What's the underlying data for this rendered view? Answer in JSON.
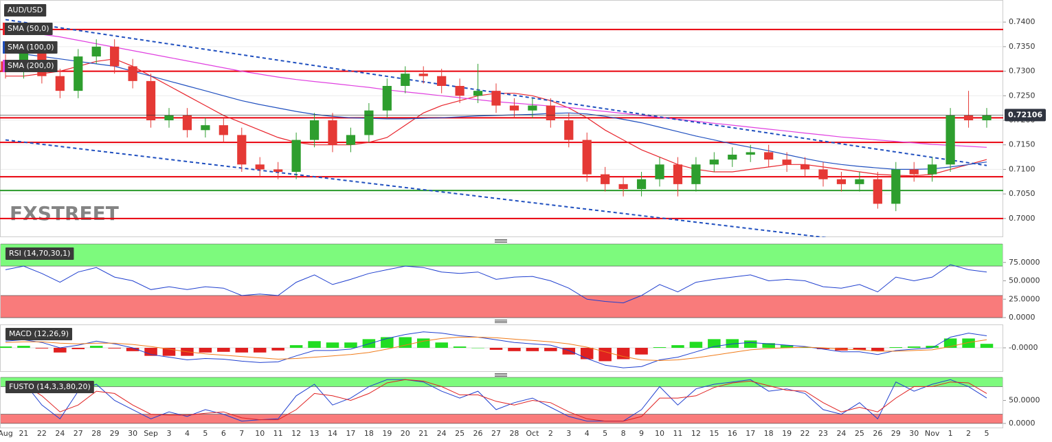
{
  "title": "AUD/USD",
  "watermark": "FXSTREET",
  "chart_data": [
    {
      "type": "candlestick",
      "categories": [
        "Aug",
        "21",
        "22",
        "24",
        "27",
        "28",
        "29",
        "30",
        "Sep",
        "3",
        "4",
        "5",
        "6",
        "7",
        "10",
        "11",
        "12",
        "13",
        "14",
        "17",
        "18",
        "19",
        "20",
        "21",
        "24",
        "25",
        "26",
        "27",
        "28",
        "Oct",
        "2",
        "3",
        "4",
        "5",
        "8",
        "9",
        "10",
        "11",
        "12",
        "15",
        "16",
        "17",
        "18",
        "19",
        "22",
        "23",
        "24",
        "25",
        "26",
        "29",
        "30",
        "Nov",
        "1",
        "2",
        "5"
      ],
      "open": [
        0.732,
        0.73,
        0.734,
        0.729,
        0.726,
        0.733,
        0.735,
        0.731,
        0.728,
        0.72,
        0.721,
        0.718,
        0.719,
        0.717,
        0.711,
        0.71,
        0.7095,
        0.716,
        0.72,
        0.715,
        0.717,
        0.722,
        0.727,
        0.7295,
        0.729,
        0.727,
        0.725,
        0.726,
        0.723,
        0.722,
        0.723,
        0.72,
        0.716,
        0.709,
        0.707,
        0.706,
        0.708,
        0.711,
        0.707,
        0.711,
        0.712,
        0.713,
        0.7135,
        0.712,
        0.711,
        0.71,
        0.708,
        0.707,
        0.708,
        0.703,
        0.71,
        0.709,
        0.711,
        0.721,
        0.72
      ],
      "high": [
        0.7335,
        0.7355,
        0.7355,
        0.7305,
        0.7345,
        0.7365,
        0.7365,
        0.7325,
        0.7295,
        0.7225,
        0.7225,
        0.7205,
        0.7205,
        0.7185,
        0.7125,
        0.7115,
        0.7175,
        0.7215,
        0.7215,
        0.7185,
        0.7235,
        0.7285,
        0.731,
        0.731,
        0.7305,
        0.7285,
        0.7315,
        0.7275,
        0.7245,
        0.7245,
        0.7245,
        0.7215,
        0.7175,
        0.7105,
        0.7085,
        0.7095,
        0.7125,
        0.7125,
        0.7125,
        0.7135,
        0.7145,
        0.715,
        0.715,
        0.7135,
        0.7125,
        0.7115,
        0.7095,
        0.7095,
        0.7095,
        0.7115,
        0.7115,
        0.7125,
        0.7225,
        0.726,
        0.7225
      ],
      "low": [
        0.7285,
        0.7285,
        0.7275,
        0.7245,
        0.7245,
        0.7315,
        0.7295,
        0.7265,
        0.7185,
        0.7185,
        0.7165,
        0.7165,
        0.7155,
        0.7095,
        0.7085,
        0.708,
        0.708,
        0.7145,
        0.7135,
        0.7135,
        0.7155,
        0.7205,
        0.7255,
        0.7275,
        0.7255,
        0.7235,
        0.7235,
        0.7215,
        0.7205,
        0.7205,
        0.7185,
        0.7145,
        0.7075,
        0.7055,
        0.7045,
        0.7045,
        0.7065,
        0.7045,
        0.7055,
        0.7095,
        0.7105,
        0.7115,
        0.7105,
        0.7095,
        0.7085,
        0.7065,
        0.7055,
        0.7055,
        0.702,
        0.7015,
        0.7075,
        0.7075,
        0.7095,
        0.7185,
        0.7185
      ],
      "close": [
        0.73,
        0.734,
        0.729,
        0.726,
        0.733,
        0.735,
        0.731,
        0.728,
        0.72,
        0.721,
        0.718,
        0.719,
        0.717,
        0.711,
        0.71,
        0.7095,
        0.716,
        0.72,
        0.715,
        0.717,
        0.722,
        0.727,
        0.7295,
        0.729,
        0.727,
        0.725,
        0.726,
        0.723,
        0.722,
        0.723,
        0.72,
        0.716,
        0.709,
        0.707,
        0.706,
        0.708,
        0.711,
        0.707,
        0.711,
        0.712,
        0.713,
        0.7135,
        0.712,
        0.711,
        0.71,
        0.708,
        0.707,
        0.708,
        0.703,
        0.71,
        0.709,
        0.711,
        0.721,
        0.72,
        0.721
      ],
      "up_color": "#2e9e2e",
      "down_color": "#e53935",
      "series": [
        {
          "name": "SMA (50,0)",
          "color": "#e8242c",
          "values": [
            0.729,
            0.729,
            0.7295,
            0.73,
            0.731,
            0.732,
            0.7325,
            0.731,
            0.729,
            0.727,
            0.725,
            0.723,
            0.721,
            0.7195,
            0.718,
            0.7165,
            0.7155,
            0.715,
            0.715,
            0.715,
            0.7155,
            0.7165,
            0.719,
            0.7215,
            0.723,
            0.724,
            0.725,
            0.7255,
            0.7255,
            0.725,
            0.724,
            0.7225,
            0.7205,
            0.718,
            0.716,
            0.714,
            0.7125,
            0.711,
            0.71,
            0.7095,
            0.7095,
            0.71,
            0.7105,
            0.711,
            0.711,
            0.7105,
            0.71,
            0.7095,
            0.709,
            0.7088,
            0.7087,
            0.709,
            0.71,
            0.711,
            0.712
          ]
        },
        {
          "name": "SMA (100,0)",
          "color": "#1f4fbf",
          "values": [
            0.734,
            0.7335,
            0.733,
            0.7325,
            0.732,
            0.7315,
            0.731,
            0.73,
            0.729,
            0.728,
            0.727,
            0.726,
            0.725,
            0.724,
            0.7232,
            0.7225,
            0.7218,
            0.7212,
            0.7208,
            0.7205,
            0.7204,
            0.7203,
            0.7203,
            0.7204,
            0.7205,
            0.7207,
            0.7209,
            0.721,
            0.7211,
            0.7212,
            0.7214,
            0.7215,
            0.7213,
            0.7208,
            0.7202,
            0.7195,
            0.7186,
            0.7177,
            0.7168,
            0.716,
            0.7152,
            0.7145,
            0.7138,
            0.713,
            0.7122,
            0.7115,
            0.711,
            0.7106,
            0.7103,
            0.71,
            0.71,
            0.7101,
            0.7105,
            0.711,
            0.7115
          ]
        },
        {
          "name": "SMA (200,0)",
          "color": "#e040e0",
          "values": [
            0.7385,
            0.738,
            0.7375,
            0.737,
            0.7363,
            0.7356,
            0.7349,
            0.7342,
            0.7335,
            0.7328,
            0.7321,
            0.7314,
            0.7307,
            0.73,
            0.7294,
            0.7288,
            0.7283,
            0.7279,
            0.7275,
            0.7271,
            0.7267,
            0.7262,
            0.7258,
            0.7254,
            0.725,
            0.7246,
            0.7242,
            0.7238,
            0.7235,
            0.7232,
            0.7229,
            0.7226,
            0.7222,
            0.7218,
            0.7214,
            0.721,
            0.7206,
            0.7202,
            0.7198,
            0.7194,
            0.719,
            0.7186,
            0.7182,
            0.7178,
            0.7174,
            0.717,
            0.7166,
            0.7163,
            0.716,
            0.7157,
            0.7154,
            0.7151,
            0.7149,
            0.7147,
            0.7145
          ]
        }
      ],
      "levels": [
        0.7385,
        0.73,
        0.7205,
        0.7155,
        0.7085,
        0.7
      ],
      "level_color": "#e8000b",
      "support": 0.7057,
      "support_color": "#2a9a2a",
      "trendlines": [
        {
          "start": 0.7405,
          "end": 0.7108
        },
        {
          "start": 0.716,
          "end": 0.6922
        }
      ],
      "trendline_color": "#1f4fbf",
      "last_price": 0.72106,
      "ylim": [
        0.6962,
        0.7445
      ],
      "yticks": [
        {
          "value": 0.7,
          "label": "0.7000"
        },
        {
          "value": 0.705,
          "label": "0.7050"
        },
        {
          "value": 0.71,
          "label": "0.7100"
        },
        {
          "value": 0.715,
          "label": "0.7150"
        },
        {
          "value": 0.72,
          "label": "0.7200"
        },
        {
          "value": 0.725,
          "label": "0.7250"
        },
        {
          "value": 0.73,
          "label": "0.7300"
        },
        {
          "value": 0.735,
          "label": "0.7350"
        },
        {
          "value": 0.74,
          "label": "0.7400"
        }
      ],
      "grid": true
    },
    {
      "type": "line",
      "name": "RSI (14,70,30,1)",
      "series": [
        {
          "color": "#1f3fcf",
          "values": [
            65,
            70,
            60,
            48,
            62,
            68,
            55,
            50,
            38,
            42,
            38,
            42,
            40,
            30,
            32,
            30,
            48,
            58,
            45,
            52,
            60,
            65,
            70,
            68,
            62,
            60,
            62,
            52,
            55,
            56,
            50,
            40,
            25,
            22,
            20,
            30,
            45,
            35,
            48,
            52,
            55,
            58,
            50,
            52,
            50,
            42,
            40,
            45,
            35,
            55,
            50,
            55,
            72,
            65,
            62
          ]
        }
      ],
      "bands": [
        {
          "from": 70,
          "to": 100,
          "color": "#7dfa7d"
        },
        {
          "from": 0,
          "to": 30,
          "color": "#f97b7b"
        }
      ],
      "ylim": [
        0,
        100
      ],
      "yticks": [
        {
          "value": 0,
          "label": "0.0000"
        },
        {
          "value": 25,
          "label": "25.0000"
        },
        {
          "value": 50,
          "label": "50.0000"
        },
        {
          "value": 75,
          "label": "75.0000"
        }
      ]
    },
    {
      "type": "macd",
      "name": "MACD (12,26,9)",
      "macd": {
        "color": "#1f3fcf",
        "values": [
          0.001,
          0.0012,
          0.0008,
          0.0,
          0.0004,
          0.001,
          0.0006,
          0.0,
          -0.001,
          -0.0014,
          -0.0018,
          -0.0016,
          -0.0017,
          -0.002,
          -0.0022,
          -0.0021,
          -0.0012,
          -0.0004,
          -0.0004,
          -0.0002,
          0.0006,
          0.0014,
          0.002,
          0.0024,
          0.0022,
          0.0018,
          0.0016,
          0.0012,
          0.0008,
          0.0006,
          0.0004,
          -0.0004,
          -0.0016,
          -0.0026,
          -0.003,
          -0.0028,
          -0.0018,
          -0.0014,
          -0.0006,
          0.0002,
          0.0006,
          0.0008,
          0.0006,
          0.0004,
          0.0002,
          -0.0002,
          -0.0006,
          -0.0006,
          -0.001,
          -0.0004,
          -0.0002,
          0.0,
          0.0016,
          0.0022,
          0.0018
        ]
      },
      "signal": {
        "color": "#f07b19",
        "values": [
          0.0008,
          0.0009,
          0.0009,
          0.0007,
          0.0006,
          0.0007,
          0.0007,
          0.0005,
          0.0002,
          -0.0002,
          -0.0006,
          -0.0009,
          -0.0011,
          -0.0013,
          -0.0015,
          -0.0017,
          -0.0016,
          -0.0014,
          -0.0012,
          -0.001,
          -0.0007,
          -0.0002,
          0.0004,
          0.001,
          0.0014,
          0.0016,
          0.0016,
          0.0015,
          0.0013,
          0.0011,
          0.0009,
          0.0006,
          0.0001,
          -0.0006,
          -0.0013,
          -0.0018,
          -0.0019,
          -0.0018,
          -0.0015,
          -0.0011,
          -0.0007,
          -0.0003,
          -0.0001,
          0.0,
          0.0001,
          0.0,
          -0.0002,
          -0.0003,
          -0.0005,
          -0.0005,
          -0.0004,
          -0.0003,
          0.0002,
          0.0008,
          0.0012
        ]
      },
      "histogram": {
        "positive_color": "#22dd22",
        "negative_color": "#e02020",
        "values": [
          0.0002,
          0.0003,
          -0.0001,
          -0.0007,
          -0.0002,
          0.0003,
          -0.0001,
          -0.0005,
          -0.0012,
          -0.0012,
          -0.0012,
          -0.0007,
          -0.0006,
          -0.0007,
          -0.0007,
          -0.0004,
          0.0004,
          0.001,
          0.0008,
          0.0008,
          0.0013,
          0.0016,
          0.0016,
          0.0014,
          0.0008,
          0.0002,
          0.0,
          -0.0003,
          -0.0005,
          -0.0005,
          -0.0005,
          -0.001,
          -0.0017,
          -0.002,
          -0.0017,
          -0.001,
          0.0001,
          0.0004,
          0.0009,
          0.0013,
          0.0013,
          0.0011,
          0.0007,
          0.0004,
          0.0001,
          -0.0002,
          -0.0004,
          -0.0003,
          -0.0005,
          0.0001,
          0.0002,
          0.0003,
          0.0014,
          0.0014,
          0.0006
        ]
      },
      "ylim": [
        -0.0035,
        0.0035
      ],
      "yticks": [
        {
          "value": 0,
          "label": "-0.0000"
        }
      ]
    },
    {
      "type": "line",
      "name": "FUSTO (14,3,3,80,20)",
      "series": [
        {
          "color": "#1f3fcf",
          "values": [
            80,
            90,
            40,
            10,
            70,
            85,
            50,
            30,
            10,
            25,
            15,
            30,
            20,
            5,
            8,
            10,
            60,
            85,
            40,
            55,
            80,
            95,
            95,
            90,
            70,
            55,
            70,
            30,
            45,
            55,
            35,
            15,
            5,
            5,
            5,
            30,
            80,
            40,
            75,
            85,
            90,
            95,
            70,
            75,
            65,
            30,
            20,
            45,
            10,
            90,
            70,
            85,
            95,
            80,
            55
          ]
        },
        {
          "color": "#e02020",
          "values": [
            75,
            85,
            60,
            25,
            40,
            70,
            65,
            40,
            20,
            18,
            18,
            22,
            25,
            12,
            8,
            8,
            30,
            65,
            60,
            50,
            65,
            88,
            95,
            92,
            80,
            62,
            62,
            48,
            40,
            50,
            45,
            25,
            10,
            5,
            5,
            15,
            55,
            55,
            60,
            78,
            88,
            92,
            82,
            72,
            70,
            45,
            25,
            35,
            25,
            55,
            80,
            80,
            90,
            88,
            65
          ]
        }
      ],
      "bands": [
        {
          "from": 80,
          "to": 100,
          "color": "#7dfa7d"
        },
        {
          "from": 0,
          "to": 20,
          "color": "#f97b7b"
        }
      ],
      "ylim": [
        -9,
        100
      ],
      "yticks": [
        {
          "value": 0,
          "label": "0.0000"
        },
        {
          "value": 50,
          "label": "50.0000"
        }
      ]
    }
  ]
}
